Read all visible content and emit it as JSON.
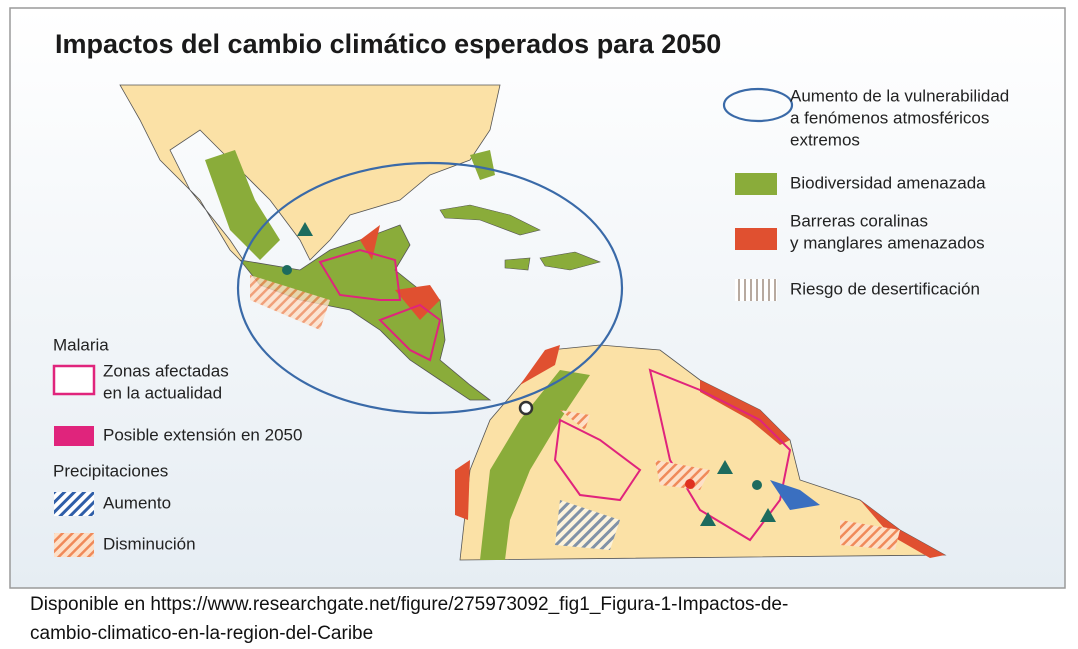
{
  "title": "Impactos del cambio climático esperados para 2050",
  "legend_right": [
    {
      "lines": [
        "Aumento de la vulnerabilidad",
        "a fenómenos atmosféricos",
        "extremos"
      ]
    },
    {
      "lines": [
        "Biodiversidad amenazada"
      ]
    },
    {
      "lines": [
        "Barreras coralinas",
        "y manglares amenazados"
      ]
    },
    {
      "lines": [
        "Riesgo de desertificación"
      ]
    }
  ],
  "legend_left": {
    "malaria_title": "Malaria",
    "malaria_items": [
      {
        "lines": [
          "Zonas afectadas",
          "en la actualidad"
        ]
      },
      {
        "lines": [
          "Posible extensión en 2050"
        ]
      }
    ],
    "precip_title": "Precipitaciones",
    "precip_items": [
      {
        "lines": [
          "Aumento"
        ]
      },
      {
        "lines": [
          "Disminución"
        ]
      }
    ]
  },
  "caption": [
    "Disponible en https://www.researchgate.net/figure/275973092_fig1_Figura-1-Impactos-de-",
    "cambio-climatico-en-la-region-del-Caribe"
  ]
}
